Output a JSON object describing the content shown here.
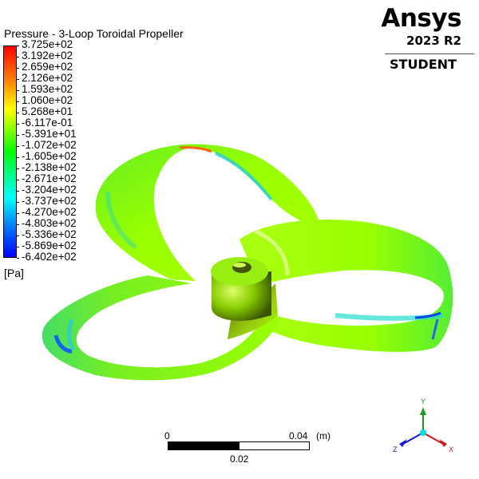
{
  "legend": {
    "title": "Pressure - 3-Loop Toroidal Propeller",
    "unit": "[Pa]",
    "labels": [
      "3.725e+02",
      "3.192e+02",
      "2.659e+02",
      "2.126e+02",
      "1.593e+02",
      "1.060e+02",
      "5.268e+01",
      "-6.117e-01",
      "-5.391e+01",
      "-1.072e+02",
      "-1.605e+02",
      "-2.138e+02",
      "-2.671e+02",
      "-3.204e+02",
      "-3.737e+02",
      "-4.270e+02",
      "-4.803e+02",
      "-5.336e+02",
      "-5.869e+02",
      "-6.402e+02"
    ],
    "max": 372.5,
    "min": -640.2,
    "colors": [
      "#ff0000",
      "#ff8000",
      "#ffff00",
      "#80ff00",
      "#00ff00",
      "#00ff80",
      "#00ffff",
      "#0080ff",
      "#0000ff"
    ]
  },
  "brand": {
    "name": "Ansys",
    "version": "2023 R2",
    "edition": "STUDENT"
  },
  "scale_bar": {
    "start": "0",
    "mid": "0.02",
    "end": "0.04",
    "unit": "(m)"
  },
  "triad": {
    "x": "X",
    "y": "Y",
    "z": "Z",
    "x_color": "#e02020",
    "y_color": "#20a020",
    "z_color": "#2020e0",
    "origin_color": "#00e0e0"
  },
  "model": {
    "name": "3-Loop Toroidal Propeller",
    "variable": "Pressure"
  }
}
